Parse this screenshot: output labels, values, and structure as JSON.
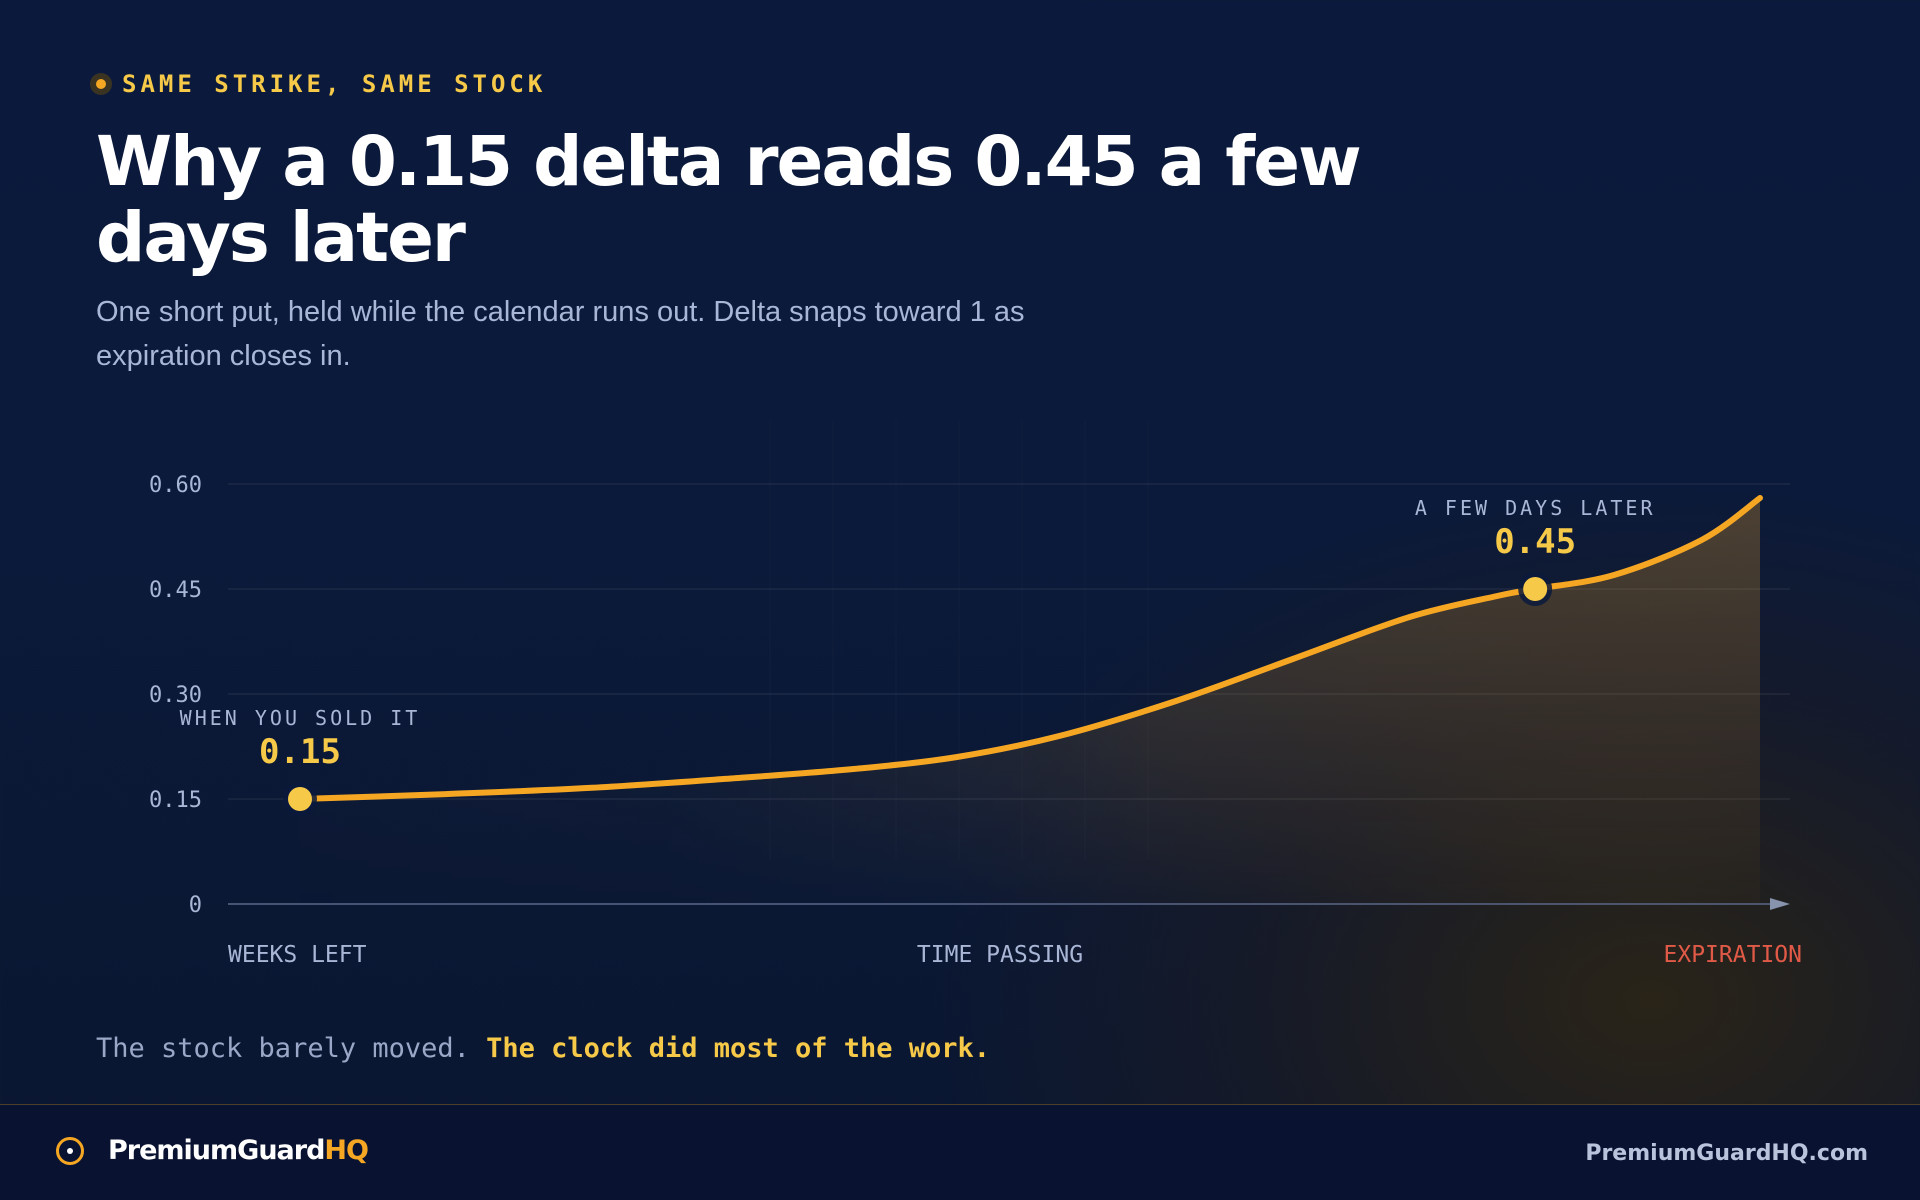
{
  "eyebrow": "SAME STRIKE, SAME STOCK",
  "title": "Why a 0.15 delta reads 0.45 a few days later",
  "subtitle": "One short put, held while the calendar runs out. Delta snaps toward 1 as expiration closes in.",
  "tagline": {
    "normal": "The stock barely moved.",
    "highlight": "The clock did most of the work."
  },
  "footer": {
    "brand_main": "PremiumGuard",
    "brand_accent": "HQ",
    "site": "PremiumGuardHQ.com"
  },
  "colors": {
    "background": "#0b1a3c",
    "line": "#f5a623",
    "highlight": "#f7c948",
    "expiration": "#e05a47",
    "muted": "#a9b6d6"
  },
  "chart_data": {
    "type": "area",
    "title": "",
    "xlabel": "",
    "ylabel": "",
    "x_labels": [
      "WEEKS LEFT",
      "TIME PASSING",
      "EXPIRATION"
    ],
    "y_ticks": [
      0,
      0.15,
      0.3,
      0.45,
      0.6
    ],
    "y_tick_labels": [
      "0",
      "0.15",
      "0.30",
      "0.45",
      "0.60"
    ],
    "ylim": [
      0,
      0.6
    ],
    "grid": true,
    "x_scale": "relative time from sale to expiration (0 = when sold, 1 = expiration)",
    "series": [
      {
        "points": [
          [
            0.0,
            0.15
          ],
          [
            0.1,
            0.157
          ],
          [
            0.2,
            0.166
          ],
          [
            0.3,
            0.18
          ],
          [
            0.38,
            0.193
          ],
          [
            0.45,
            0.21
          ],
          [
            0.52,
            0.24
          ],
          [
            0.6,
            0.29
          ],
          [
            0.68,
            0.35
          ],
          [
            0.76,
            0.41
          ],
          [
            0.82,
            0.44
          ],
          [
            0.846,
            0.45
          ],
          [
            0.9,
            0.47
          ],
          [
            0.96,
            0.52
          ],
          [
            1.0,
            0.58
          ]
        ]
      }
    ],
    "annotations": [
      {
        "x": 0.0,
        "y": 0.15,
        "label": "WHEN YOU SOLD IT",
        "value": "0.15"
      },
      {
        "x": 0.846,
        "y": 0.45,
        "label": "A FEW DAYS LATER",
        "value": "0.45"
      }
    ]
  }
}
